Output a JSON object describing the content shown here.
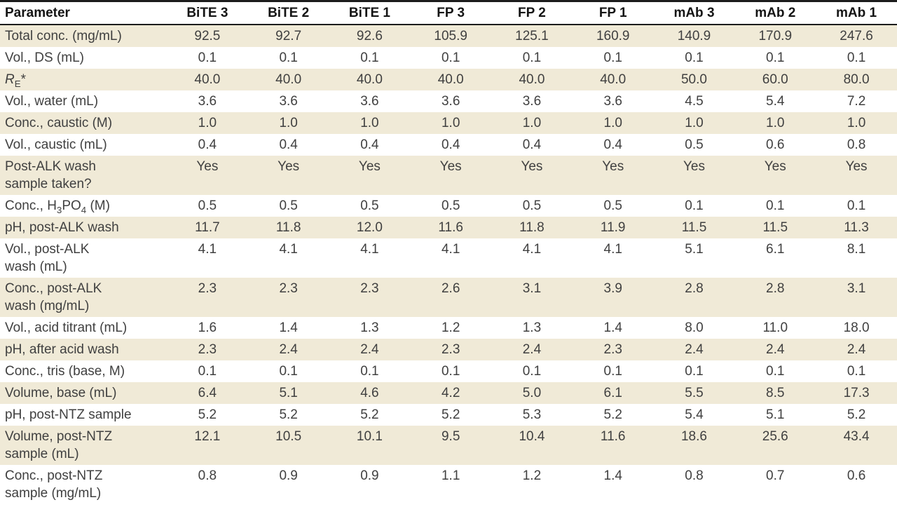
{
  "colors": {
    "zebra_row_bg": "#f0ead7",
    "rule": "#1c1c1c",
    "body_text": "#404040",
    "header_text": "#141414"
  },
  "table": {
    "columns": [
      "Parameter",
      "BiTE 3",
      "BiTE 2",
      "BiTE 1",
      "FP 3",
      "FP 2",
      "FP 1",
      "mAb 3",
      "mAb 2",
      "mAb 1"
    ],
    "rows": [
      {
        "label": [
          "Total conc. (mg/mL)"
        ],
        "values": [
          "92.5",
          "92.7",
          "92.6",
          "105.9",
          "125.1",
          "160.9",
          "140.9",
          "170.9",
          "247.6"
        ]
      },
      {
        "label": [
          "Vol., DS (mL)"
        ],
        "values": [
          "0.1",
          "0.1",
          "0.1",
          "0.1",
          "0.1",
          "0.1",
          "0.1",
          "0.1",
          "0.1"
        ]
      },
      {
        "label": [
          [
            {
              "t": "R",
              "s": "i"
            },
            {
              "t": "E",
              "s": "sub"
            },
            {
              "t": "*"
            }
          ]
        ],
        "values": [
          "40.0",
          "40.0",
          "40.0",
          "40.0",
          "40.0",
          "40.0",
          "50.0",
          "60.0",
          "80.0"
        ]
      },
      {
        "label": [
          "Vol., water (mL)"
        ],
        "values": [
          "3.6",
          "3.6",
          "3.6",
          "3.6",
          "3.6",
          "3.6",
          "4.5",
          "5.4",
          "7.2"
        ]
      },
      {
        "label": [
          "Conc., caustic (M)"
        ],
        "values": [
          "1.0",
          "1.0",
          "1.0",
          "1.0",
          "1.0",
          "1.0",
          "1.0",
          "1.0",
          "1.0"
        ]
      },
      {
        "label": [
          "Vol., caustic (mL)"
        ],
        "values": [
          "0.4",
          "0.4",
          "0.4",
          "0.4",
          "0.4",
          "0.4",
          "0.5",
          "0.6",
          "0.8"
        ]
      },
      {
        "label": [
          "Post-ALK wash",
          "sample taken?"
        ],
        "values": [
          "Yes",
          "Yes",
          "Yes",
          "Yes",
          "Yes",
          "Yes",
          "Yes",
          "Yes",
          "Yes"
        ]
      },
      {
        "label": [
          [
            {
              "t": "Conc., H"
            },
            {
              "t": "3",
              "s": "sub"
            },
            {
              "t": "PO"
            },
            {
              "t": "4",
              "s": "sub"
            },
            {
              "t": " (M)"
            }
          ]
        ],
        "values": [
          "0.5",
          "0.5",
          "0.5",
          "0.5",
          "0.5",
          "0.5",
          "0.1",
          "0.1",
          "0.1"
        ]
      },
      {
        "label": [
          "pH, post-ALK wash"
        ],
        "values": [
          "11.7",
          "11.8",
          "12.0",
          "11.6",
          "11.8",
          "11.9",
          "11.5",
          "11.5",
          "11.3"
        ]
      },
      {
        "label": [
          "Vol., post-ALK",
          "wash (mL)"
        ],
        "values": [
          "4.1",
          "4.1",
          "4.1",
          "4.1",
          "4.1",
          "4.1",
          "5.1",
          "6.1",
          "8.1"
        ]
      },
      {
        "label": [
          "Conc., post-ALK",
          "wash (mg/mL)"
        ],
        "values": [
          "2.3",
          "2.3",
          "2.3",
          "2.6",
          "3.1",
          "3.9",
          "2.8",
          "2.8",
          "3.1"
        ]
      },
      {
        "label": [
          "Vol., acid titrant (mL)"
        ],
        "values": [
          "1.6",
          "1.4",
          "1.3",
          "1.2",
          "1.3",
          "1.4",
          "8.0",
          "11.0",
          "18.0"
        ]
      },
      {
        "label": [
          "pH, after acid wash"
        ],
        "values": [
          "2.3",
          "2.4",
          "2.4",
          "2.3",
          "2.4",
          "2.3",
          "2.4",
          "2.4",
          "2.4"
        ]
      },
      {
        "label": [
          "Conc., tris (base, M)"
        ],
        "values": [
          "0.1",
          "0.1",
          "0.1",
          "0.1",
          "0.1",
          "0.1",
          "0.1",
          "0.1",
          "0.1"
        ]
      },
      {
        "label": [
          "Volume, base (mL)"
        ],
        "values": [
          "6.4",
          "5.1",
          "4.6",
          "4.2",
          "5.0",
          "6.1",
          "5.5",
          "8.5",
          "17.3"
        ]
      },
      {
        "label": [
          "pH, post-NTZ sample"
        ],
        "values": [
          "5.2",
          "5.2",
          "5.2",
          "5.2",
          "5.3",
          "5.2",
          "5.4",
          "5.1",
          "5.2"
        ]
      },
      {
        "label": [
          "Volume, post-NTZ",
          "sample (mL)"
        ],
        "values": [
          "12.1",
          "10.5",
          "10.1",
          "9.5",
          "10.4",
          "11.6",
          "18.6",
          "25.6",
          "43.4"
        ]
      },
      {
        "label": [
          "Conc., post-NTZ",
          "sample (mg/mL)"
        ],
        "values": [
          "0.8",
          "0.9",
          "0.9",
          "1.1",
          "1.2",
          "1.4",
          "0.8",
          "0.7",
          "0.6"
        ]
      }
    ]
  }
}
